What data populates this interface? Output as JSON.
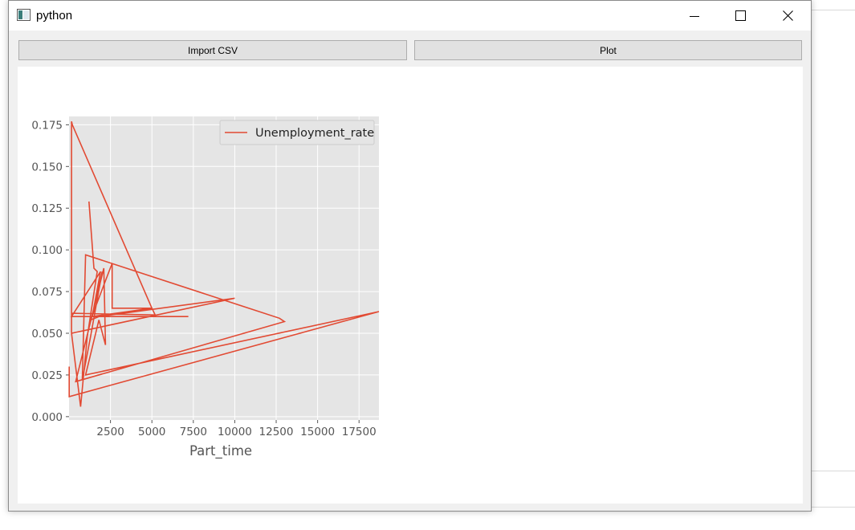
{
  "window": {
    "title": "python",
    "icon": "window-app-icon"
  },
  "toolbar": {
    "import_label": "Import CSV",
    "plot_label": "Plot"
  },
  "colors": {
    "line": "#e24a33",
    "plot_bg": "#e5e5e5",
    "grid": "#ffffff"
  },
  "chart_data": {
    "type": "line",
    "xlabel": "Part_time",
    "ylabel": "",
    "xlim": [
      0,
      18700
    ],
    "ylim": [
      -0.002,
      0.18
    ],
    "xticks": [
      2500,
      5000,
      7500,
      10000,
      12500,
      15000,
      17500
    ],
    "xtick_labels": [
      "2500",
      "5000",
      "7500",
      "10000",
      "12500",
      "15000",
      "17500"
    ],
    "yticks": [
      0.0,
      0.025,
      0.05,
      0.075,
      0.1,
      0.125,
      0.15,
      0.175
    ],
    "ytick_labels": [
      "0.000",
      "0.025",
      "0.050",
      "0.075",
      "0.100",
      "0.125",
      "0.150",
      "0.175"
    ],
    "grid": true,
    "legend_position": "top-right",
    "series": [
      {
        "name": "Unemployment_rate",
        "x": [
          1200,
          1500,
          1700,
          1100,
          700,
          150,
          150,
          200,
          5000,
          5200,
          150,
          150,
          10000,
          1800,
          1300,
          2600,
          2600,
          5000,
          1400,
          7200,
          150,
          1900,
          1400,
          2000,
          1300,
          800,
          1000,
          12700,
          13000,
          400,
          2100,
          2200,
          1800,
          1000,
          18700,
          10,
          10
        ],
        "y": [
          0.129,
          0.089,
          0.087,
          0.048,
          0.006,
          0.05,
          0.177,
          0.175,
          0.065,
          0.061,
          0.062,
          0.05,
          0.071,
          0.06,
          0.058,
          0.092,
          0.065,
          0.065,
          0.06,
          0.06,
          0.06,
          0.087,
          0.06,
          0.087,
          0.048,
          0.022,
          0.097,
          0.059,
          0.057,
          0.021,
          0.089,
          0.043,
          0.058,
          0.025,
          0.063,
          0.012,
          0.03
        ]
      }
    ]
  }
}
